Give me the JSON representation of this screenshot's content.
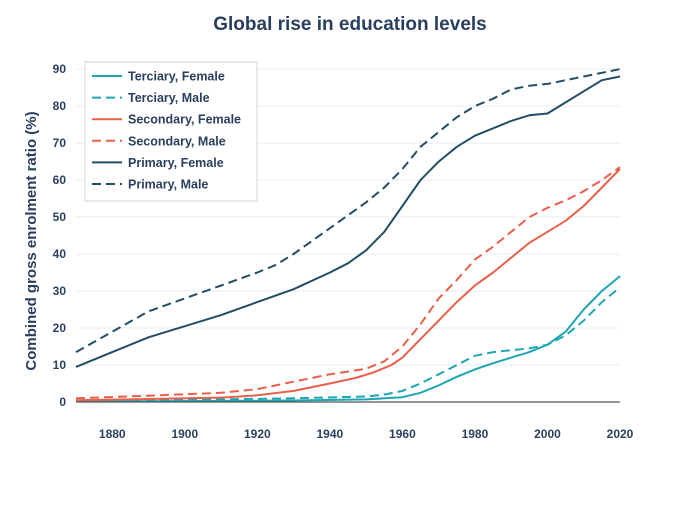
{
  "chart_data": {
    "type": "line",
    "title": "Global rise in education levels",
    "xlabel": "",
    "ylabel": "Combined gross enrolment ratio (%)",
    "xlim": [
      1870,
      2020
    ],
    "ylim": [
      0,
      93
    ],
    "x_ticks": [
      1880,
      1900,
      1920,
      1940,
      1960,
      1980,
      2000,
      2020
    ],
    "y_ticks": [
      0,
      10,
      20,
      30,
      40,
      50,
      60,
      70,
      80,
      90
    ],
    "grid": true,
    "legend_position": "top-left",
    "series": [
      {
        "name": "Terciary, Female",
        "color": "#1fa6b2",
        "dash": "solid",
        "points": [
          [
            1870,
            0.2
          ],
          [
            1890,
            0.2
          ],
          [
            1910,
            0.3
          ],
          [
            1930,
            0.4
          ],
          [
            1950,
            0.7
          ],
          [
            1960,
            1.3
          ],
          [
            1965,
            2.5
          ],
          [
            1970,
            4.5
          ],
          [
            1975,
            6.8
          ],
          [
            1980,
            8.8
          ],
          [
            1985,
            10.5
          ],
          [
            1990,
            12
          ],
          [
            1995,
            13.5
          ],
          [
            2000,
            15.5
          ],
          [
            2005,
            19
          ],
          [
            2010,
            25
          ],
          [
            2015,
            30
          ],
          [
            2020,
            34
          ]
        ]
      },
      {
        "name": "Terciary, Male",
        "color": "#1fa6b2",
        "dash": "dash",
        "points": [
          [
            1870,
            0.3
          ],
          [
            1890,
            0.5
          ],
          [
            1910,
            0.7
          ],
          [
            1930,
            1
          ],
          [
            1950,
            1.5
          ],
          [
            1955,
            2
          ],
          [
            1960,
            3
          ],
          [
            1965,
            5
          ],
          [
            1970,
            7.5
          ],
          [
            1975,
            10
          ],
          [
            1980,
            12.5
          ],
          [
            1985,
            13.5
          ],
          [
            1990,
            14
          ],
          [
            1995,
            14.5
          ],
          [
            2000,
            15.5
          ],
          [
            2005,
            18
          ],
          [
            2010,
            22
          ],
          [
            2015,
            27
          ],
          [
            2020,
            31
          ]
        ]
      },
      {
        "name": "Secondary, Female",
        "color": "#e8604a",
        "dash": "solid",
        "points": [
          [
            1870,
            0.5
          ],
          [
            1890,
            0.8
          ],
          [
            1910,
            1.2
          ],
          [
            1920,
            1.8
          ],
          [
            1930,
            3
          ],
          [
            1940,
            5
          ],
          [
            1947,
            6.5
          ],
          [
            1952,
            8
          ],
          [
            1957,
            10
          ],
          [
            1960,
            12
          ],
          [
            1965,
            17
          ],
          [
            1970,
            22
          ],
          [
            1975,
            27
          ],
          [
            1980,
            31.5
          ],
          [
            1985,
            35
          ],
          [
            1990,
            39
          ],
          [
            1995,
            43
          ],
          [
            2000,
            46
          ],
          [
            2005,
            49
          ],
          [
            2010,
            53
          ],
          [
            2015,
            58
          ],
          [
            2020,
            63
          ]
        ]
      },
      {
        "name": "Secondary, Male",
        "color": "#e8604a",
        "dash": "dash",
        "points": [
          [
            1870,
            1
          ],
          [
            1890,
            1.7
          ],
          [
            1910,
            2.5
          ],
          [
            1920,
            3.5
          ],
          [
            1930,
            5.5
          ],
          [
            1940,
            7.5
          ],
          [
            1950,
            9
          ],
          [
            1955,
            11
          ],
          [
            1960,
            15
          ],
          [
            1965,
            21
          ],
          [
            1970,
            28
          ],
          [
            1975,
            33
          ],
          [
            1980,
            38.5
          ],
          [
            1985,
            42
          ],
          [
            1990,
            46
          ],
          [
            1995,
            50
          ],
          [
            2000,
            52.5
          ],
          [
            2005,
            54.5
          ],
          [
            2010,
            57
          ],
          [
            2015,
            60
          ],
          [
            2020,
            63.5
          ]
        ]
      },
      {
        "name": "Primary, Female",
        "color": "#234d65",
        "dash": "solid",
        "points": [
          [
            1870,
            9.5
          ],
          [
            1880,
            13.5
          ],
          [
            1890,
            17.5
          ],
          [
            1900,
            20.5
          ],
          [
            1910,
            23.5
          ],
          [
            1920,
            27
          ],
          [
            1930,
            30.5
          ],
          [
            1940,
            35
          ],
          [
            1945,
            37.5
          ],
          [
            1950,
            41
          ],
          [
            1955,
            46
          ],
          [
            1960,
            53
          ],
          [
            1965,
            60
          ],
          [
            1970,
            65
          ],
          [
            1975,
            69
          ],
          [
            1980,
            72
          ],
          [
            1985,
            74
          ],
          [
            1990,
            76
          ],
          [
            1995,
            77.5
          ],
          [
            2000,
            78
          ],
          [
            2005,
            81
          ],
          [
            2010,
            84
          ],
          [
            2015,
            87
          ],
          [
            2020,
            88
          ]
        ]
      },
      {
        "name": "Primary, Male",
        "color": "#234d65",
        "dash": "dash",
        "points": [
          [
            1870,
            13.5
          ],
          [
            1880,
            19
          ],
          [
            1890,
            24.5
          ],
          [
            1900,
            28
          ],
          [
            1910,
            31.5
          ],
          [
            1920,
            35
          ],
          [
            1925,
            37
          ],
          [
            1930,
            40
          ],
          [
            1940,
            47
          ],
          [
            1950,
            54
          ],
          [
            1955,
            58
          ],
          [
            1960,
            63
          ],
          [
            1965,
            69
          ],
          [
            1970,
            73
          ],
          [
            1975,
            77
          ],
          [
            1980,
            80
          ],
          [
            1985,
            82
          ],
          [
            1990,
            84.5
          ],
          [
            1995,
            85.5
          ],
          [
            2000,
            86
          ],
          [
            2005,
            87
          ],
          [
            2010,
            88
          ],
          [
            2015,
            89
          ],
          [
            2020,
            90
          ]
        ]
      }
    ]
  }
}
